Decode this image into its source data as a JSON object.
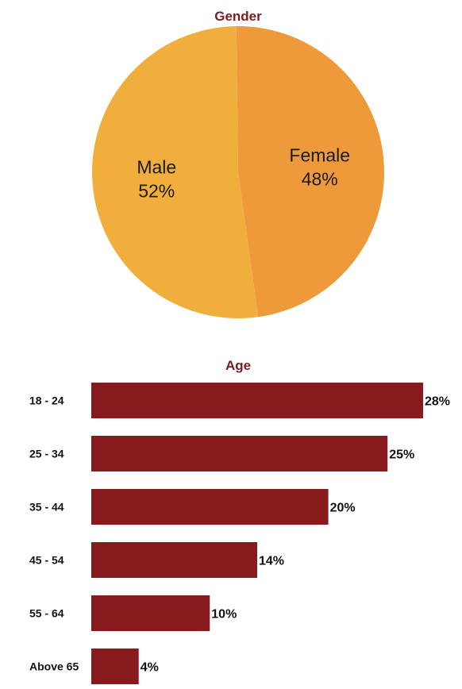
{
  "chart_data": [
    {
      "type": "pie",
      "title": "Gender",
      "title_color": "#7a1c22",
      "slices": [
        {
          "label": "Female",
          "value": 48,
          "display": "48%",
          "color": "#ee9a3b"
        },
        {
          "label": "Male",
          "value": 52,
          "display": "52%",
          "color": "#f0ae3d"
        }
      ],
      "legend": "none"
    },
    {
      "type": "bar",
      "orientation": "horizontal",
      "title": "Age",
      "title_color": "#7a1c22",
      "bar_color": "#861a1d",
      "categories": [
        "18 - 24",
        "25 - 34",
        "35 - 44",
        "45 - 54",
        "55 - 64",
        "Above 65"
      ],
      "values": [
        28,
        25,
        20,
        14,
        10,
        4
      ],
      "value_labels": [
        "28%",
        "25%",
        "20%",
        "14%",
        "10%",
        "4%"
      ],
      "xlim": [
        0,
        28
      ],
      "grid": false,
      "legend": "none"
    }
  ]
}
